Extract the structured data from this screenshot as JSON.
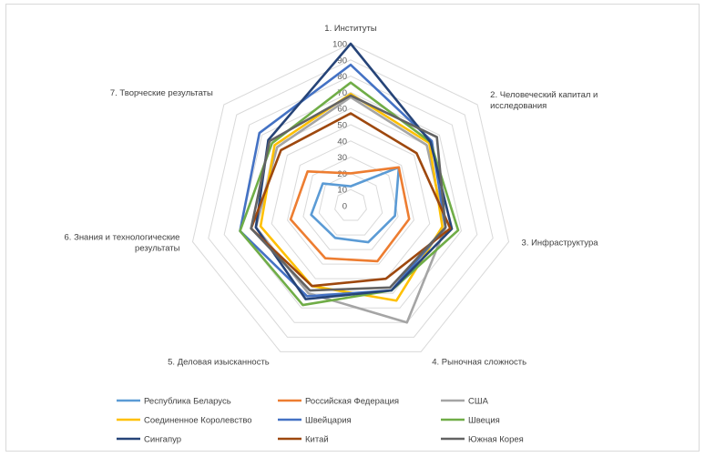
{
  "chart_data": {
    "type": "radar",
    "title": "",
    "categories": [
      "1. Институты",
      "2. Человеческий капитал и исследования",
      "3. Инфраструктура",
      "4. Рыночная сложность",
      "5. Деловая изысканность",
      "6. Знания и технологические результаты",
      "7. Творческие результаты"
    ],
    "category_lines": [
      [
        "1. Институты"
      ],
      [
        "2. Человеческий капитал и",
        "исследования"
      ],
      [
        "3. Инфраструктура"
      ],
      [
        "4. Рыночная сложность"
      ],
      [
        "5. Деловая изысканность"
      ],
      [
        "6. Знания и технологические",
        "результаты"
      ],
      [
        "7. Творческие результаты"
      ]
    ],
    "rlim": [
      0,
      100
    ],
    "ticks": [
      0,
      10,
      20,
      30,
      40,
      50,
      60,
      70,
      80,
      90,
      100
    ],
    "grid": true,
    "legend_position": "bottom",
    "series": [
      {
        "name": "Республика Беларусь",
        "color": "#5B9BD5",
        "values": [
          12,
          38,
          28,
          25,
          22,
          25,
          22
        ]
      },
      {
        "name": "Российская Федерация",
        "color": "#ED7D31",
        "values": [
          20,
          38,
          37,
          38,
          36,
          38,
          34
        ]
      },
      {
        "name": "США",
        "color": "#A5A5A5",
        "values": [
          67,
          60,
          60,
          80,
          60,
          60,
          58
        ]
      },
      {
        "name": "Соединенное Королевство",
        "color": "#FFC000",
        "values": [
          69,
          62,
          58,
          65,
          55,
          57,
          60
        ]
      },
      {
        "name": "Швейцария",
        "color": "#4472C4",
        "values": [
          87,
          64,
          60,
          58,
          62,
          70,
          72
        ]
      },
      {
        "name": "Швеция",
        "color": "#70AD47",
        "values": [
          76,
          63,
          68,
          58,
          68,
          70,
          62
        ]
      },
      {
        "name": "Сингапур",
        "color": "#264478",
        "values": [
          100,
          63,
          64,
          58,
          64,
          60,
          65
        ]
      },
      {
        "name": "Китай",
        "color": "#9E480E",
        "values": [
          57,
          52,
          63,
          50,
          55,
          63,
          55
        ]
      },
      {
        "name": "Южная Корея",
        "color": "#636363",
        "values": [
          68,
          68,
          60,
          56,
          58,
          63,
          64
        ]
      }
    ]
  }
}
